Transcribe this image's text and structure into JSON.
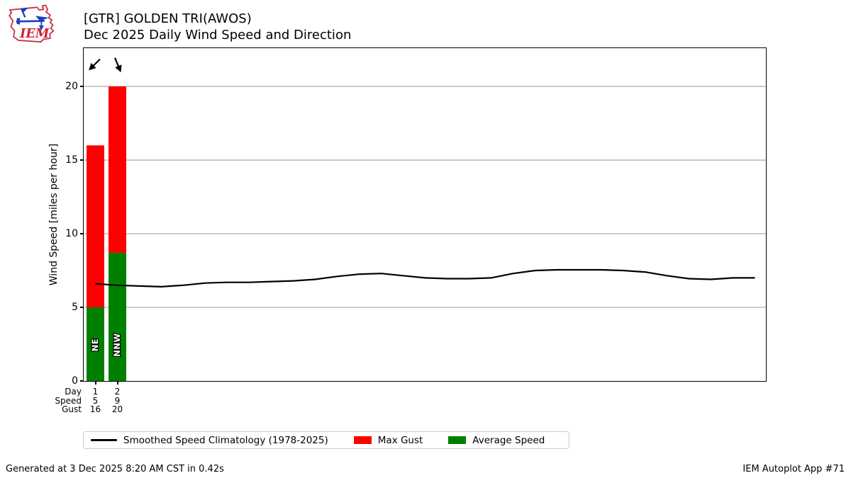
{
  "header": {
    "title_line1": "[GTR] GOLDEN TRI(AWOS)",
    "title_line2": "Dec 2025 Daily Wind Speed and Direction",
    "logo_text": "IEM"
  },
  "colors": {
    "max_gust": "#ff0000",
    "average_speed": "#008000",
    "climatology": "#000000",
    "grid": "#b0b0b0",
    "logo_red": "#cc3344",
    "logo_blue": "#1d3fbf"
  },
  "chart_data": {
    "type": "bar",
    "title": "Dec 2025 Daily Wind Speed and Direction",
    "station": "[GTR] GOLDEN TRI(AWOS)",
    "ylabel": "Wind Speed [miles per hour]",
    "ylim": [
      0,
      22.6
    ],
    "yticks": [
      0,
      5,
      10,
      15,
      20
    ],
    "grid": "horizontal",
    "legend_position": "bottom",
    "bars": [
      {
        "day": 1,
        "day_label": "1",
        "avg_speed": 5.0,
        "speed_label": "5",
        "max_gust": 16,
        "gust_label": "16",
        "direction": "NE",
        "direction_deg": 45
      },
      {
        "day": 2,
        "day_label": "2",
        "avg_speed": 8.7,
        "speed_label": "9",
        "max_gust": 20,
        "gust_label": "20",
        "direction": "NNW",
        "direction_deg": 337.5
      }
    ],
    "xaxis_rows": [
      {
        "label": "Day",
        "values": [
          "1",
          "2"
        ]
      },
      {
        "label": "Speed",
        "values": [
          "5",
          "9"
        ]
      },
      {
        "label": "Gust",
        "values": [
          "16",
          "20"
        ]
      }
    ],
    "climatology": {
      "name": "Smoothed Speed Climatology (1978-2025)",
      "days": [
        1,
        2,
        3,
        4,
        5,
        6,
        7,
        8,
        9,
        10,
        11,
        12,
        13,
        14,
        15,
        16,
        17,
        18,
        19,
        20,
        21,
        22,
        23,
        24,
        25,
        26,
        27,
        28,
        29,
        30,
        31
      ],
      "values": [
        6.6,
        6.5,
        6.45,
        6.4,
        6.5,
        6.65,
        6.7,
        6.7,
        6.75,
        6.8,
        6.9,
        7.1,
        7.25,
        7.3,
        7.15,
        7.0,
        6.95,
        6.95,
        7.0,
        7.3,
        7.5,
        7.55,
        7.55,
        7.55,
        7.5,
        7.4,
        7.15,
        6.95,
        6.9,
        7.0,
        7.0
      ]
    }
  },
  "legend": {
    "items": [
      {
        "swatch": "line",
        "color": "#000000",
        "label": "Smoothed Speed Climatology (1978-2025)"
      },
      {
        "swatch": "rect",
        "color": "#ff0000",
        "label": "Max Gust"
      },
      {
        "swatch": "rect",
        "color": "#008000",
        "label": "Average Speed"
      }
    ]
  },
  "footer": {
    "generated": "Generated at 3 Dec 2025 8:20 AM CST in 0.42s",
    "app": "IEM Autoplot App #71"
  }
}
